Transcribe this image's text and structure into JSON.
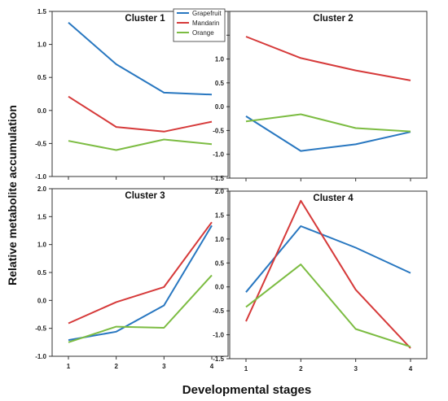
{
  "chart_data": {
    "type": "line",
    "xlabel": "Developmental stages",
    "ylabel": "Relative metabolite accumulation",
    "categories": [
      "1",
      "2",
      "3",
      "4"
    ],
    "legend": {
      "placement": "top-left panel, top-right",
      "entries": [
        {
          "name": "Grapefruit",
          "color": "#2877c0"
        },
        {
          "name": "Mandarin",
          "color": "#d63a3a"
        },
        {
          "name": "Orange",
          "color": "#7cbc42"
        }
      ]
    },
    "panels": [
      {
        "title": "Cluster 1",
        "ylim": [
          -1.0,
          1.5
        ],
        "yticks": [
          "-1.0",
          "-0.5",
          "0.0",
          "0.5",
          "1.0",
          "1.5"
        ],
        "series": [
          {
            "name": "Grapefruit",
            "values": [
              1.33,
              0.7,
              0.27,
              0.24
            ]
          },
          {
            "name": "Mandarin",
            "values": [
              0.21,
              -0.25,
              -0.32,
              -0.17
            ]
          },
          {
            "name": "Orange",
            "values": [
              -0.46,
              -0.6,
              -0.44,
              -0.51
            ]
          }
        ]
      },
      {
        "title": "Cluster 2",
        "ylim": [
          -1.5,
          2.0
        ],
        "yticks": [
          "-1.5",
          "-1.0",
          "-0.5",
          "0.0",
          "0.5",
          "1.0",
          "1.5",
          "2.0"
        ],
        "series": [
          {
            "name": "Grapefruit",
            "values": [
              -0.2,
              -0.93,
              -0.79,
              -0.53
            ]
          },
          {
            "name": "Mandarin",
            "values": [
              1.47,
              1.02,
              0.76,
              0.55
            ]
          },
          {
            "name": "Orange",
            "values": [
              -0.31,
              -0.16,
              -0.45,
              -0.52
            ]
          }
        ]
      },
      {
        "title": "Cluster 3",
        "ylim": [
          -1.0,
          2.0
        ],
        "yticks": [
          "-1.0",
          "-0.5",
          "0.0",
          "0.5",
          "1.0",
          "1.5",
          "2.0"
        ],
        "series": [
          {
            "name": "Grapefruit",
            "values": [
              -0.71,
              -0.56,
              -0.09,
              1.34
            ]
          },
          {
            "name": "Mandarin",
            "values": [
              -0.41,
              -0.03,
              0.24,
              1.4
            ]
          },
          {
            "name": "Orange",
            "values": [
              -0.75,
              -0.47,
              -0.49,
              0.45
            ]
          }
        ]
      },
      {
        "title": "Cluster 4",
        "ylim": [
          -1.5,
          2.0
        ],
        "yticks": [
          "-1.5",
          "-1.0",
          "-0.5",
          "0.0",
          "0.5",
          "1.0",
          "1.5",
          "2.0"
        ],
        "series": [
          {
            "name": "Grapefruit",
            "values": [
              -0.11,
              1.27,
              0.82,
              0.29
            ]
          },
          {
            "name": "Mandarin",
            "values": [
              -0.72,
              1.8,
              -0.06,
              -1.28
            ]
          },
          {
            "name": "Orange",
            "values": [
              -0.42,
              0.47,
              -0.88,
              -1.25
            ]
          }
        ]
      }
    ]
  }
}
